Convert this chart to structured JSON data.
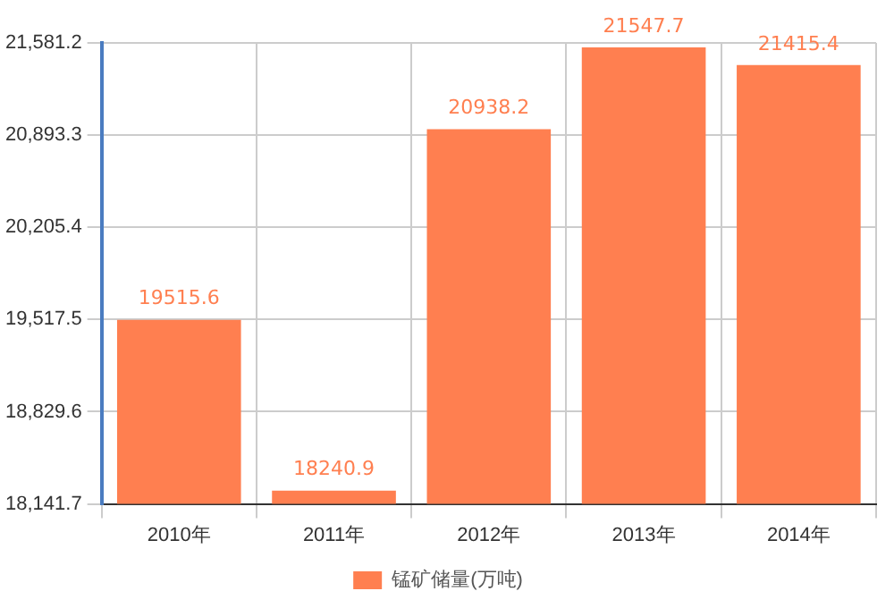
{
  "chart_data": {
    "type": "bar",
    "categories": [
      "2010年",
      "2011年",
      "2012年",
      "2013年",
      "2014年"
    ],
    "series": [
      {
        "name": "锰矿储量(万吨)",
        "color": "#ff7f50",
        "values": [
          19515.6,
          18240.9,
          20938.2,
          21547.7,
          21415.4
        ]
      }
    ],
    "ylim": [
      18141.7,
      21581.2
    ],
    "yticks": [
      {
        "value": 18141.7,
        "label": "18,141.7"
      },
      {
        "value": 18829.6,
        "label": "18,829.6"
      },
      {
        "value": 19517.5,
        "label": "19,517.5"
      },
      {
        "value": 20205.4,
        "label": "20,205.4"
      },
      {
        "value": 20893.3,
        "label": "20,893.3"
      },
      {
        "value": 21581.2,
        "label": "21,581.2"
      }
    ],
    "grid": true,
    "legend": "bottom",
    "data_labels": true
  }
}
